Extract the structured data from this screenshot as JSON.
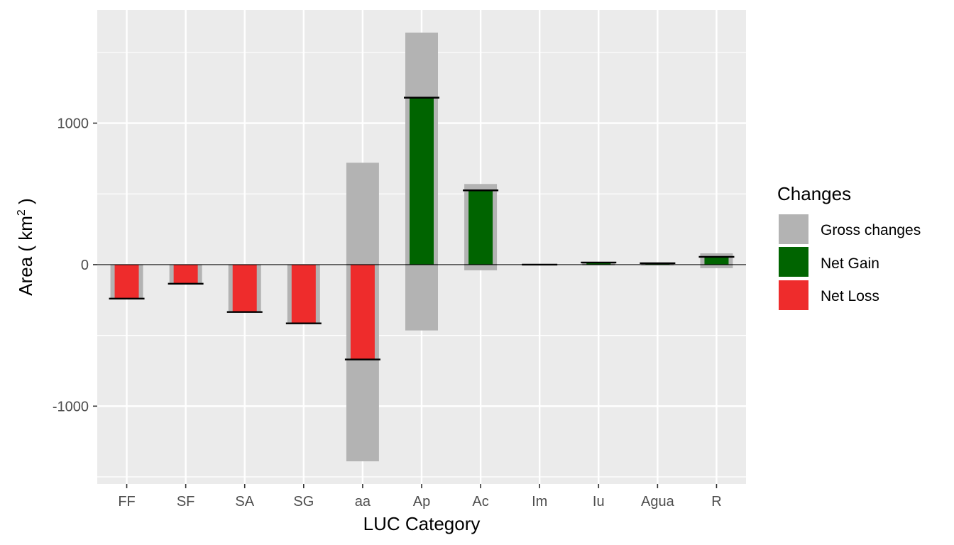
{
  "chart_data": {
    "type": "bar",
    "categories": [
      "FF",
      "SF",
      "SA",
      "SG",
      "aa",
      "Ap",
      "Ac",
      "Im",
      "Iu",
      "Agua",
      "R"
    ],
    "series": [
      {
        "name": "Gross changes",
        "gain": [
          0,
          0,
          0,
          0,
          720,
          1640,
          570,
          3,
          20,
          15,
          80
        ],
        "loss": [
          -240,
          -135,
          -335,
          -415,
          -1390,
          -465,
          -40,
          -3,
          -5,
          -5,
          -25
        ]
      },
      {
        "name": "Net Gain",
        "values": [
          0,
          0,
          0,
          0,
          0,
          1180,
          525,
          0,
          15,
          10,
          55
        ]
      },
      {
        "name": "Net Loss",
        "values": [
          -240,
          -135,
          -335,
          -415,
          -670,
          0,
          0,
          0,
          0,
          0,
          0
        ]
      }
    ],
    "net_markers": [
      -240,
      -135,
      -335,
      -415,
      -670,
      1180,
      525,
      0,
      15,
      10,
      55
    ],
    "xlabel": "LUC Category",
    "ylabel_prefix": "Area ( km",
    "ylabel_sup": "2",
    "ylabel_suffix": " )",
    "ylim": [
      -1550,
      1800
    ],
    "yticks": [
      -1000,
      0,
      1000
    ],
    "ytick_labels": [
      "-1000",
      "0",
      "1000"
    ],
    "grid": true,
    "legend": {
      "title": "Changes",
      "position": "right",
      "items": [
        {
          "label": "Gross changes",
          "color": "#b3b3b3"
        },
        {
          "label": "Net Gain",
          "color": "#006400"
        },
        {
          "label": "Net Loss",
          "color": "#ee2c2c"
        }
      ]
    },
    "colors": {
      "panel": "#ebebeb",
      "grid": "#ffffff",
      "gross": "#b3b3b3",
      "gain": "#006400",
      "loss": "#ee2c2c",
      "marker": "#000000"
    }
  }
}
